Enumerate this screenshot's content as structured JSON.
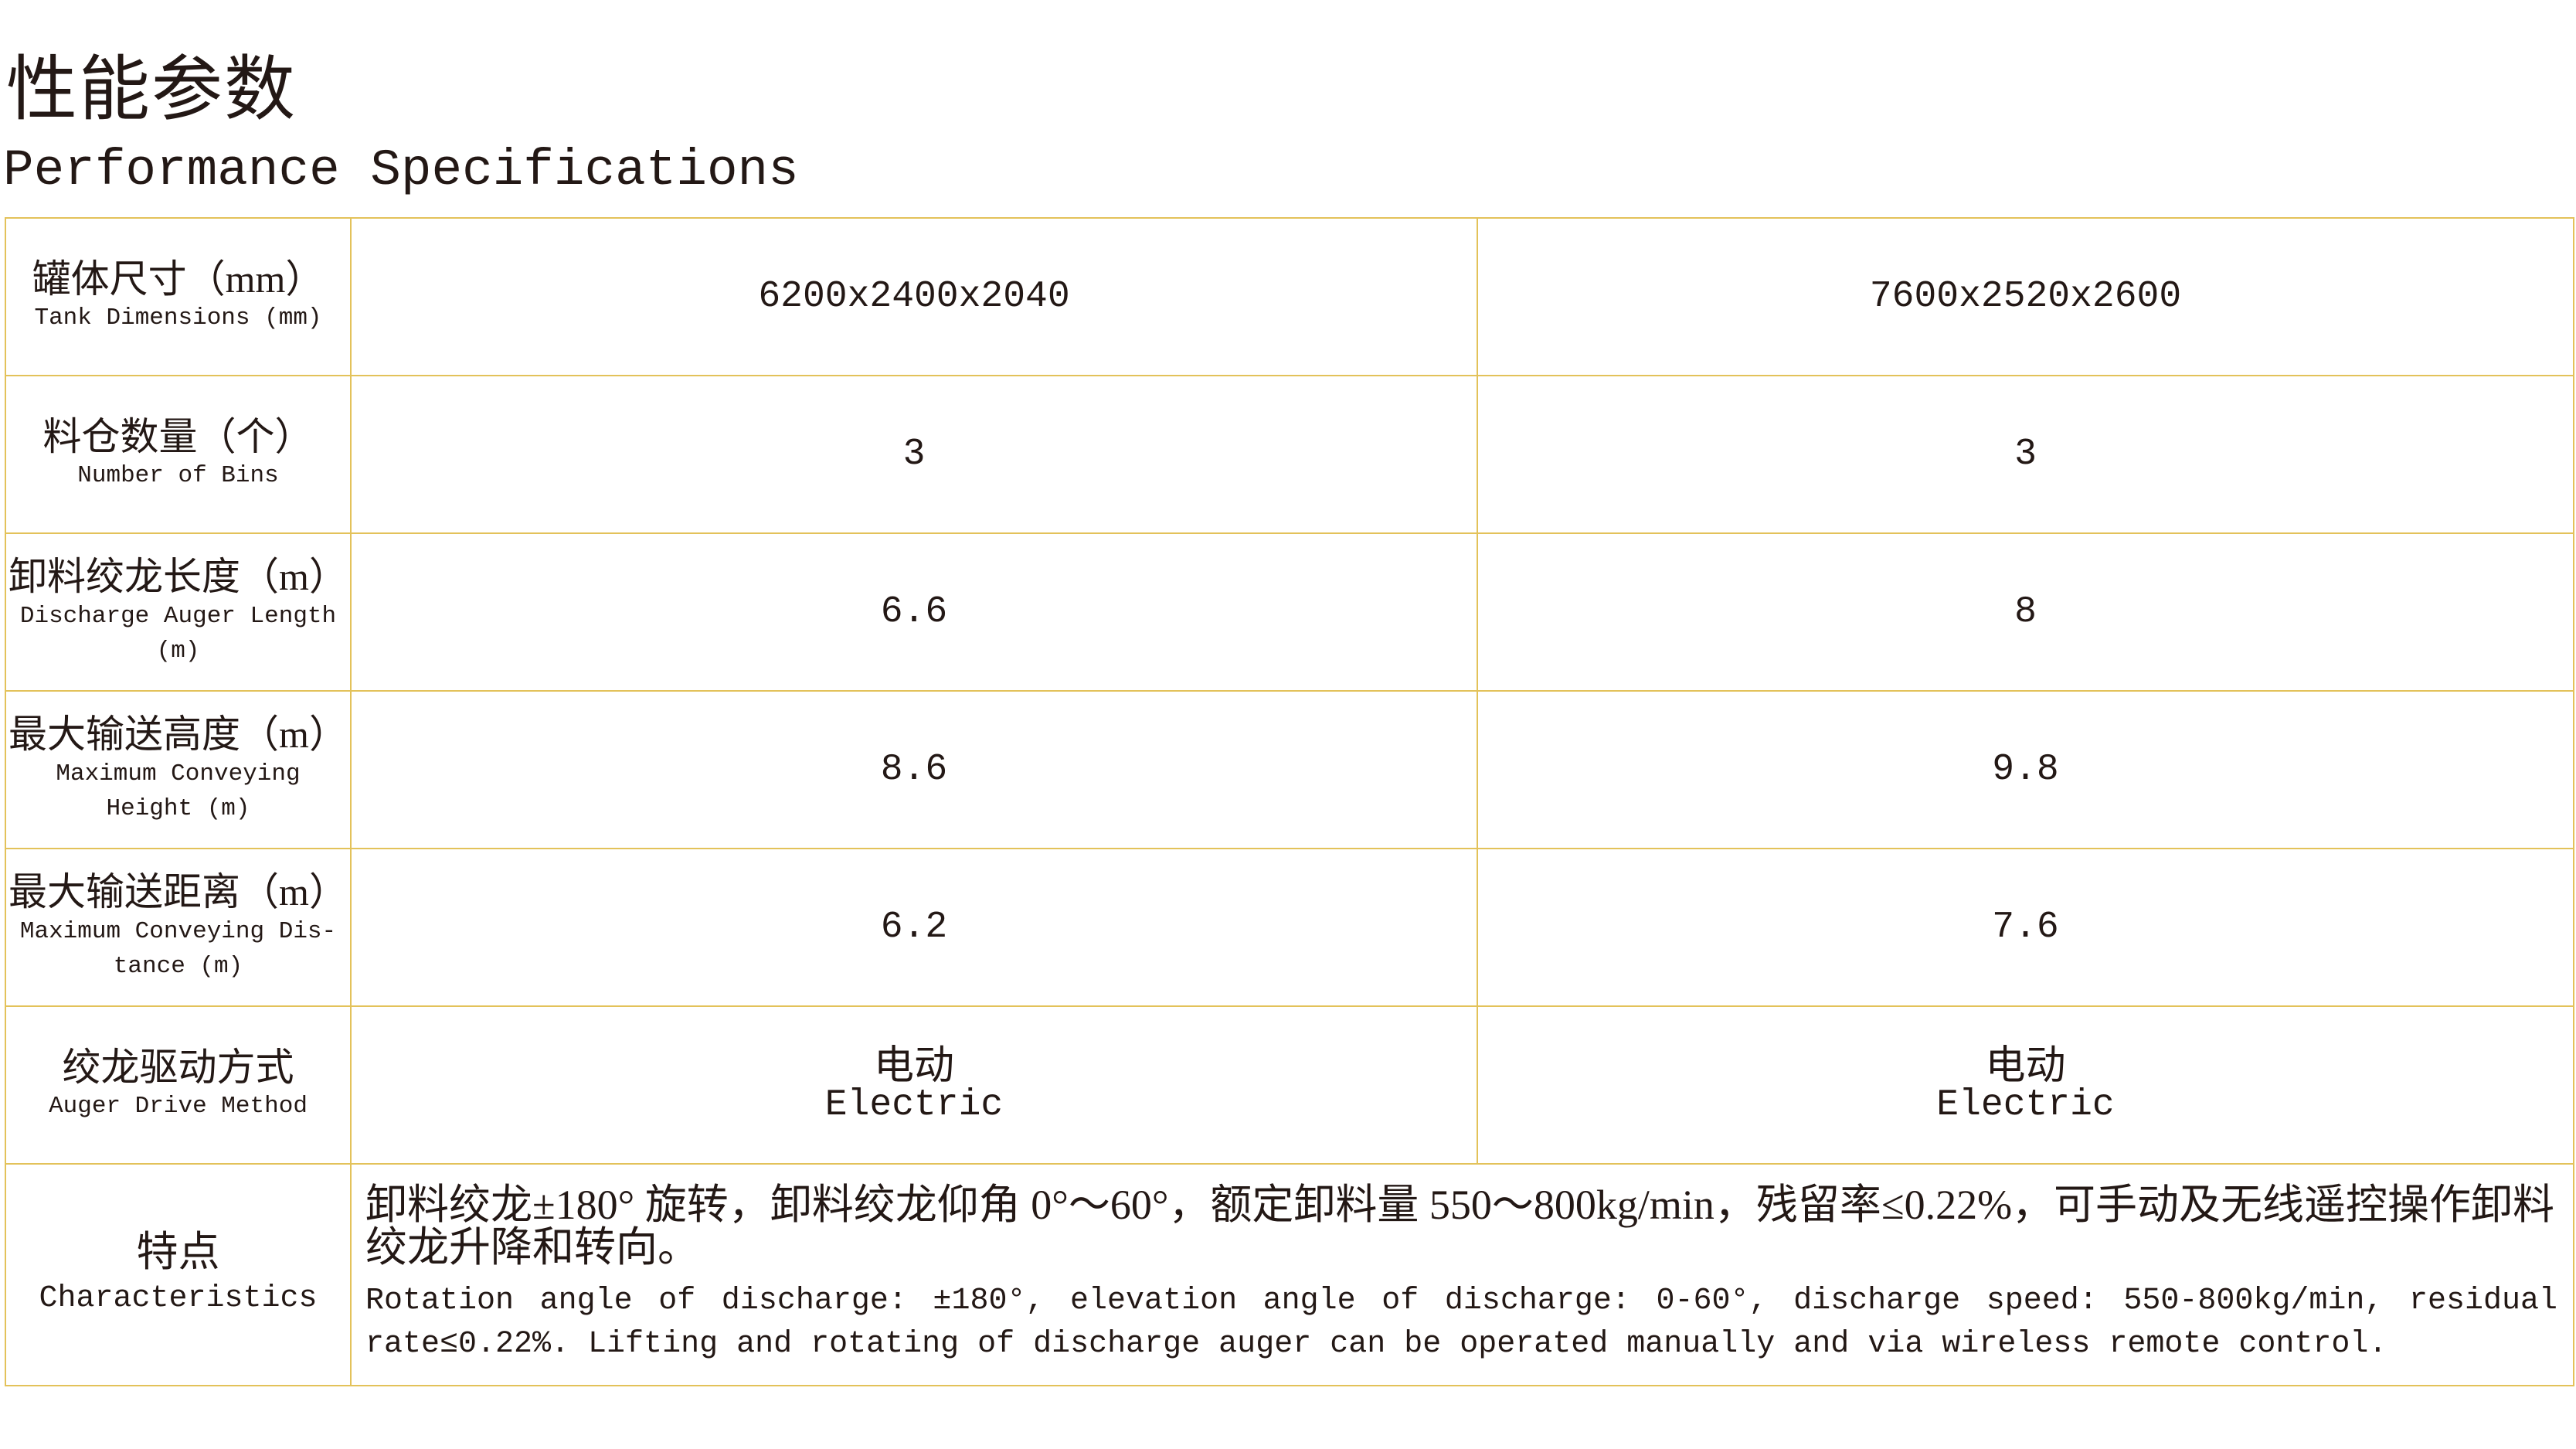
{
  "header": {
    "title_cn": "性能参数",
    "title_en": "Performance Specifications"
  },
  "table": {
    "rows": [
      {
        "label_cn": "罐体尺寸（mm）",
        "label_en": "Tank Dimensions (mm)",
        "values": [
          "6200x2400x2040",
          "7600x2520x2600"
        ]
      },
      {
        "label_cn": "料仓数量（个）",
        "label_en": "Number of Bins",
        "values": [
          "3",
          "3"
        ]
      },
      {
        "label_cn": "卸料绞龙长度（m）",
        "label_en": "Discharge Auger Length (m)",
        "values": [
          "6.6",
          "8"
        ]
      },
      {
        "label_cn": "最大输送高度（m）",
        "label_en": "Maximum Conveying Height (m)",
        "values": [
          "8.6",
          "9.8"
        ]
      },
      {
        "label_cn": "最大输送距离（m）",
        "label_en": "Maximum Conveying Dis-tance (m)",
        "values": [
          "6.2",
          "7.6"
        ]
      },
      {
        "label_cn": "绞龙驱动方式",
        "label_en": "Auger Drive Method",
        "values_cn": [
          "电动",
          "电动"
        ],
        "values_en": [
          "Electric",
          "Electric"
        ]
      }
    ],
    "characteristics": {
      "label_cn": "特点",
      "label_en": "Characteristics",
      "text_cn": "卸料绞龙±180° 旋转，卸料绞龙仰角 0°～60°，额定卸料量 550～800kg/min，残留率≤0.22%，可手动及无线遥控操作卸料绞龙升降和转向。",
      "text_en": "Rotation angle of discharge: ±180°, elevation angle of discharge: 0-60°, discharge speed: 550-800kg/min, residual rate≤0.22%. Lifting and rotating of discharge auger can be operated manually and via wireless remote control."
    }
  },
  "colors": {
    "border": "#e3c25a",
    "text": "#231815"
  }
}
